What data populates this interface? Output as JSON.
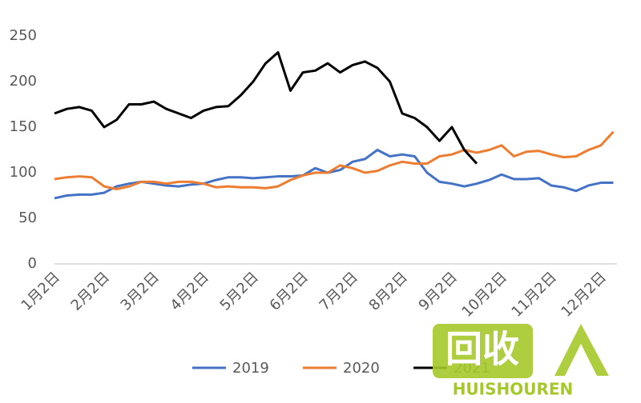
{
  "chart_data": {
    "type": "line",
    "categories": [
      "1月2日",
      null,
      null,
      null,
      "2月2日",
      null,
      null,
      null,
      "3月2日",
      null,
      null,
      null,
      "4月2日",
      null,
      null,
      null,
      "5月2日",
      null,
      null,
      null,
      "6月2日",
      null,
      null,
      null,
      "7月2日",
      null,
      null,
      null,
      "8月2日",
      null,
      null,
      null,
      "9月2日",
      null,
      null,
      null,
      "10月2日",
      null,
      null,
      null,
      "11月2日",
      null,
      null,
      null,
      "12月2日",
      null
    ],
    "series": [
      {
        "name": "2019",
        "color": "#4472c4",
        "values": [
          72,
          75,
          76,
          76,
          78,
          85,
          88,
          90,
          88,
          86,
          85,
          87,
          88,
          92,
          95,
          95,
          94,
          95,
          96,
          96,
          97,
          105,
          100,
          103,
          112,
          115,
          125,
          118,
          120,
          118,
          100,
          90,
          88,
          85,
          88,
          92,
          98,
          93,
          93,
          94,
          86,
          84,
          80,
          86,
          89,
          89
        ]
      },
      {
        "name": "2020",
        "color": "#ed7d31",
        "values": [
          93,
          95,
          96,
          95,
          85,
          82,
          85,
          90,
          90,
          88,
          90,
          90,
          88,
          84,
          85,
          84,
          84,
          83,
          85,
          92,
          97,
          100,
          100,
          108,
          105,
          100,
          102,
          108,
          112,
          110,
          110,
          118,
          120,
          125,
          122,
          125,
          130,
          118,
          123,
          124,
          120,
          117,
          118,
          125,
          130,
          145
        ]
      },
      {
        "name": "2021",
        "color": "#000000",
        "values": [
          165,
          170,
          172,
          168,
          150,
          158,
          175,
          175,
          178,
          170,
          165,
          160,
          168,
          172,
          173,
          185,
          200,
          220,
          232,
          190,
          210,
          212,
          220,
          210,
          218,
          222,
          215,
          200,
          165,
          160,
          150,
          135,
          150,
          125,
          110,
          null,
          null,
          null,
          null,
          null,
          null,
          null,
          null,
          null,
          null,
          null
        ]
      }
    ],
    "ylim": [
      0,
      250
    ],
    "yticks": [
      0,
      50,
      100,
      150,
      200,
      250
    ],
    "grid": false,
    "legend": "bottom"
  },
  "watermark": {
    "mark": "回收",
    "brand": "HUISHOUREN"
  }
}
